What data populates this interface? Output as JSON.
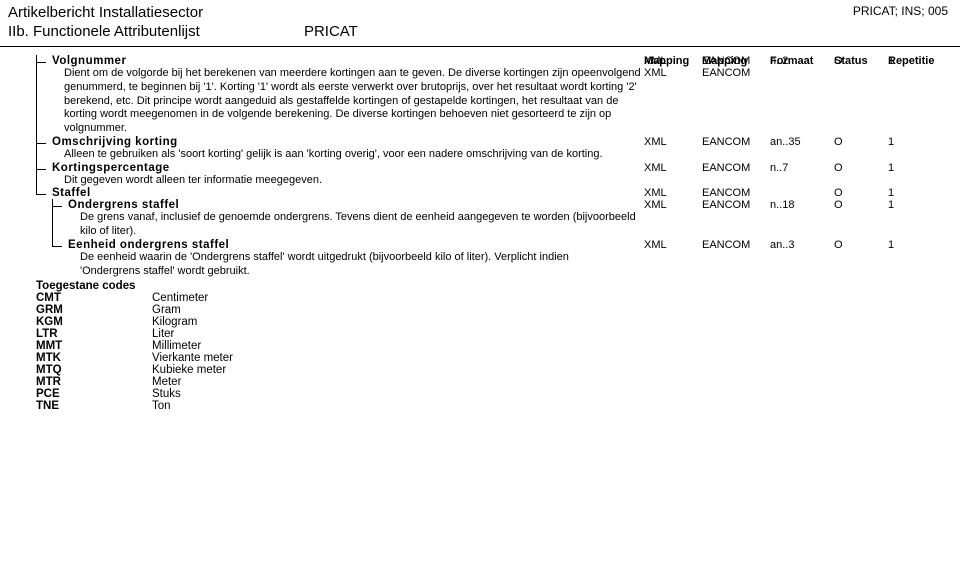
{
  "header": {
    "title": "Artikelbericht Installatiesector",
    "code": "PRICAT; INS; 005",
    "subtitle": "IIb. Functionele Attributenlijst",
    "tag": "PRICAT"
  },
  "columns": {
    "m1": "Mapping",
    "m1b": "XML",
    "m2": "Mapping",
    "m2b": "EANCOM",
    "fmt": "Formaat",
    "st": "Status",
    "rep": "Repetitie"
  },
  "items": [
    {
      "label": "Volgnummer",
      "desc": "Dient om de volgorde bij het berekenen van meerdere kortingen aan te geven. De diverse kortingen zijn opeenvolgend genummerd, te beginnen bij '1'. Korting '1' wordt als eerste verwerkt over brutoprijs, over het resultaat wordt korting '2' berekend, etc. Dit principe wordt aangeduid als gestaffelde kortingen of gestapelde kortingen, het resultaat van de korting wordt meegenomen in de volgende berekening. De diverse kortingen behoeven niet gesorteerd te zijn op volgnummer.",
      "m1": "XML",
      "m2": "EANCOM",
      "fmt": "n..2",
      "st": "O",
      "rep": "1"
    },
    {
      "label": "Omschrijving korting",
      "desc": "Alleen te gebruiken als 'soort korting' gelijk is aan 'korting overig', voor een nadere omschrijving van de korting.",
      "m1": "XML",
      "m2": "EANCOM",
      "fmt": "an..35",
      "st": "O",
      "rep": "1"
    },
    {
      "label": "Kortingspercentage",
      "desc": "Dit gegeven wordt alleen ter informatie meegegeven.",
      "m1": "XML",
      "m2": "EANCOM",
      "fmt": "n..7",
      "st": "O",
      "rep": "1"
    }
  ],
  "staffel": {
    "label": "Staffel",
    "m1": "XML",
    "m2": "EANCOM",
    "fmt": "",
    "st": "O",
    "rep": "1",
    "children": [
      {
        "label": "Ondergrens staffel",
        "desc": "De grens vanaf, inclusief de genoemde ondergrens. Tevens dient de eenheid aangegeven te worden (bijvoorbeeld kilo of liter).",
        "m1": "XML",
        "m2": "EANCOM",
        "fmt": "n..18",
        "st": "O",
        "rep": "1"
      },
      {
        "label": "Eenheid ondergrens staffel",
        "desc": "De eenheid waarin de 'Ondergrens staffel' wordt uitgedrukt (bijvoorbeeld kilo of liter). Verplicht indien 'Ondergrens staffel' wordt gebruikt.",
        "m1": "XML",
        "m2": "EANCOM",
        "fmt": "an..3",
        "st": "O",
        "rep": "1"
      }
    ]
  },
  "codesTitle": "Toegestane codes",
  "codes": [
    {
      "c": "CMT",
      "d": "Centimeter"
    },
    {
      "c": "GRM",
      "d": "Gram"
    },
    {
      "c": "KGM",
      "d": "Kilogram"
    },
    {
      "c": "LTR",
      "d": "Liter"
    },
    {
      "c": "MMT",
      "d": "Millimeter"
    },
    {
      "c": "MTK",
      "d": "Vierkante meter"
    },
    {
      "c": "MTQ",
      "d": "Kubieke meter"
    },
    {
      "c": "MTR",
      "d": "Meter"
    },
    {
      "c": "PCE",
      "d": "Stuks"
    },
    {
      "c": "TNE",
      "d": "Ton"
    }
  ]
}
